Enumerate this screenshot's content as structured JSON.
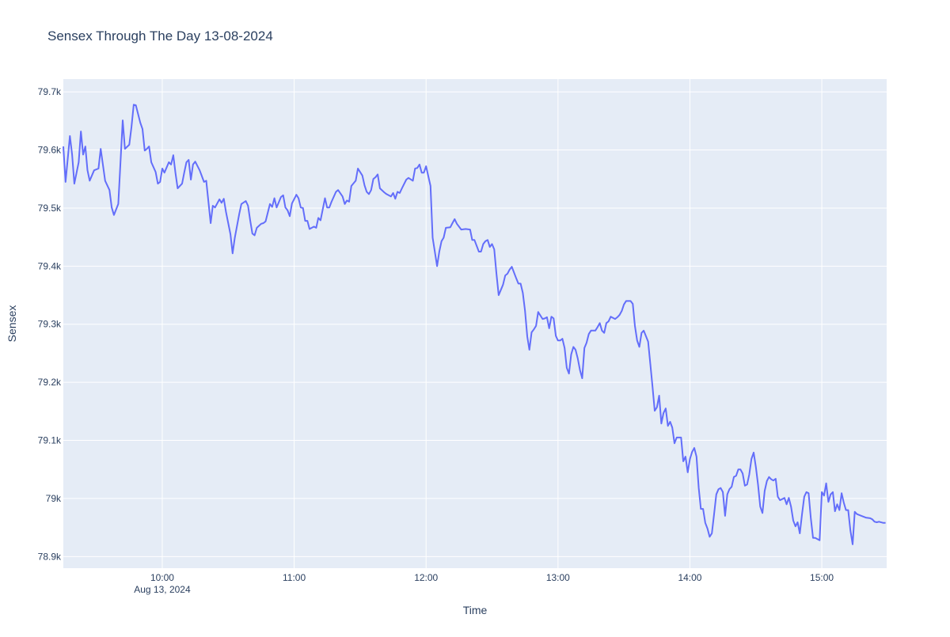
{
  "chart_data": {
    "type": "line",
    "title": "Sensex Through The Day 13-08-2024",
    "xlabel": "Time",
    "ylabel": "Sensex",
    "x_start": "2024-08-13 09:15",
    "x_unit": "minutes after 09:15",
    "xlim": [
      0,
      374.5
    ],
    "ylim": [
      78880,
      79722
    ],
    "grid": true,
    "line_color": "#636efa",
    "plot_bg": "#e5ecf6",
    "x_ticks": [
      {
        "value": 45,
        "label": "10:00",
        "sublabel": "Aug 13, 2024"
      },
      {
        "value": 105,
        "label": "11:00"
      },
      {
        "value": 165,
        "label": "12:00"
      },
      {
        "value": 225,
        "label": "13:00"
      },
      {
        "value": 285,
        "label": "14:00"
      },
      {
        "value": 345,
        "label": "15:00"
      }
    ],
    "y_ticks": [
      {
        "value": 78900,
        "label": "78.9k"
      },
      {
        "value": 79000,
        "label": "79k"
      },
      {
        "value": 79100,
        "label": "79.1k"
      },
      {
        "value": 79200,
        "label": "79.2k"
      },
      {
        "value": 79300,
        "label": "79.3k"
      },
      {
        "value": 79400,
        "label": "79.4k"
      },
      {
        "value": 79500,
        "label": "79.5k"
      },
      {
        "value": 79600,
        "label": "79.6k"
      },
      {
        "value": 79700,
        "label": "79.7k"
      }
    ],
    "series": [
      {
        "name": "Sensex",
        "x": [
          0,
          1,
          3,
          4,
          5,
          7,
          8,
          9,
          10,
          11,
          12,
          14,
          16,
          17,
          19,
          21,
          22,
          23,
          25,
          27,
          28,
          30,
          31,
          32,
          33,
          35,
          36,
          37,
          38,
          39,
          40,
          42,
          43,
          44,
          45,
          46,
          48,
          49,
          50,
          51,
          52,
          54,
          55,
          56,
          57,
          58,
          59,
          60,
          62,
          64,
          65,
          67,
          68,
          69,
          71,
          72,
          73,
          74,
          76,
          77,
          78,
          80,
          81,
          83,
          84,
          85,
          86,
          87,
          88,
          90,
          91,
          92,
          94,
          95,
          96,
          97,
          99,
          100,
          101,
          102,
          103,
          104,
          106,
          107,
          108,
          109,
          110,
          111,
          112,
          114,
          115,
          116,
          117,
          119,
          120,
          121,
          122,
          124,
          125,
          127,
          128,
          129,
          130,
          131,
          133,
          134,
          136,
          137,
          138,
          139,
          140,
          141,
          142,
          143,
          144,
          146,
          147,
          149,
          150,
          151,
          152,
          153,
          154,
          156,
          157,
          159,
          160,
          161,
          162,
          163,
          164,
          165,
          167,
          168,
          170,
          171,
          172,
          173,
          174,
          176,
          177,
          178,
          179,
          181,
          183,
          185,
          186,
          187,
          189,
          190,
          191,
          192,
          193,
          194,
          195,
          196,
          197,
          198,
          200,
          201,
          202,
          203,
          204,
          206,
          207,
          208,
          209,
          210,
          211,
          212,
          213,
          214,
          215,
          216,
          218,
          219,
          220,
          221,
          222,
          223,
          224,
          225,
          226,
          227,
          228,
          229,
          230,
          231,
          232,
          233,
          234,
          235,
          236,
          237,
          238,
          239,
          240,
          242,
          243,
          244,
          245,
          246,
          247,
          248,
          249,
          251,
          252,
          253,
          254,
          255,
          256,
          258,
          259,
          260,
          261,
          262,
          263,
          264,
          266,
          267,
          268,
          269,
          270,
          271,
          272,
          273,
          274,
          275,
          276,
          277,
          278,
          279,
          280,
          281,
          282,
          283,
          284,
          285,
          286,
          287,
          288,
          289,
          290,
          291,
          292,
          293,
          294,
          295,
          296,
          297,
          298,
          299,
          300,
          301,
          302,
          303,
          304,
          305,
          306,
          307,
          308,
          309,
          310,
          311,
          312,
          313,
          314,
          315,
          316,
          317,
          318,
          319,
          320,
          321,
          322,
          323,
          324,
          325,
          326,
          327,
          328,
          329,
          330,
          331,
          332,
          333,
          334,
          335,
          336,
          337,
          338,
          339,
          340,
          341,
          342,
          343,
          344,
          345,
          346,
          347,
          348,
          349,
          350,
          351,
          352,
          353,
          354,
          355,
          356,
          357,
          358,
          359,
          360,
          361,
          363,
          365,
          367,
          368,
          369,
          370,
          371,
          373,
          374
        ],
        "y": [
          79606,
          79545,
          79624,
          79592,
          79542,
          79579,
          79632,
          79592,
          79606,
          79565,
          79547,
          79565,
          79568,
          79602,
          79547,
          79531,
          79501,
          79488,
          79507,
          79651,
          79602,
          79609,
          79640,
          79678,
          79677,
          79647,
          79636,
          79599,
          79602,
          79606,
          79579,
          79562,
          79542,
          79545,
          79568,
          79561,
          79579,
          79575,
          79591,
          79561,
          79534,
          79542,
          79561,
          79579,
          79583,
          79549,
          79575,
          79580,
          79565,
          79545,
          79547,
          79474,
          79504,
          79501,
          79515,
          79509,
          79516,
          79493,
          79455,
          79422,
          79449,
          79490,
          79507,
          79512,
          79504,
          79479,
          79456,
          79453,
          79466,
          79473,
          79474,
          79477,
          79507,
          79502,
          79517,
          79501,
          79519,
          79522,
          79501,
          79496,
          79486,
          79508,
          79523,
          79517,
          79501,
          79500,
          79478,
          79478,
          79464,
          79468,
          79466,
          79483,
          79479,
          79517,
          79501,
          79501,
          79511,
          79528,
          79531,
          79520,
          79507,
          79513,
          79511,
          79538,
          79547,
          79568,
          79556,
          79539,
          79528,
          79524,
          79531,
          79550,
          79553,
          79558,
          79534,
          79527,
          79524,
          79520,
          79526,
          79516,
          79528,
          79526,
          79534,
          79549,
          79552,
          79547,
          79568,
          79569,
          79575,
          79561,
          79561,
          79572,
          79538,
          79449,
          79400,
          79425,
          79443,
          79449,
          79466,
          79467,
          79474,
          79481,
          79473,
          79463,
          79464,
          79463,
          79445,
          79445,
          79425,
          79425,
          79438,
          79443,
          79445,
          79433,
          79438,
          79429,
          79387,
          79350,
          79368,
          79384,
          79387,
          79394,
          79399,
          79379,
          79370,
          79370,
          79354,
          79323,
          79279,
          79256,
          79286,
          79291,
          79297,
          79321,
          79309,
          79310,
          79312,
          79293,
          79313,
          79310,
          79280,
          79272,
          79272,
          79275,
          79259,
          79225,
          79215,
          79248,
          79261,
          79256,
          79241,
          79221,
          79207,
          79259,
          79268,
          79283,
          79289,
          79289,
          79295,
          79302,
          79289,
          79285,
          79302,
          79305,
          79313,
          79309,
          79312,
          79316,
          79323,
          79334,
          79340,
          79340,
          79335,
          79297,
          79272,
          79261,
          79285,
          79289,
          79270,
          79231,
          79193,
          79151,
          79157,
          79177,
          79129,
          79147,
          79155,
          79125,
          79132,
          79122,
          79095,
          79105,
          79105,
          79105,
          79064,
          79072,
          79045,
          79068,
          79080,
          79087,
          79072,
          79018,
          78982,
          78982,
          78958,
          78948,
          78934,
          78940,
          78973,
          79007,
          79016,
          79018,
          79011,
          78970,
          79007,
          79016,
          79020,
          79037,
          79039,
          79050,
          79050,
          79043,
          79022,
          79024,
          79041,
          79068,
          79079,
          79054,
          79024,
          78986,
          78975,
          79013,
          79030,
          79037,
          79033,
          79031,
          79034,
          79003,
          78997,
          78999,
          79001,
          78990,
          79001,
          78986,
          78962,
          78952,
          78959,
          78940,
          78973,
          79003,
          79011,
          79009,
          78966,
          78932,
          78932,
          78930,
          78928,
          79011,
          79005,
          79026,
          78994,
          79007,
          79011,
          78978,
          78990,
          78980,
          79009,
          78993,
          78980,
          78980,
          78945,
          78921,
          78977,
          78973,
          78970,
          78967,
          78966,
          78964,
          78960,
          78959,
          78960,
          78958,
          78958
        ]
      }
    ]
  }
}
